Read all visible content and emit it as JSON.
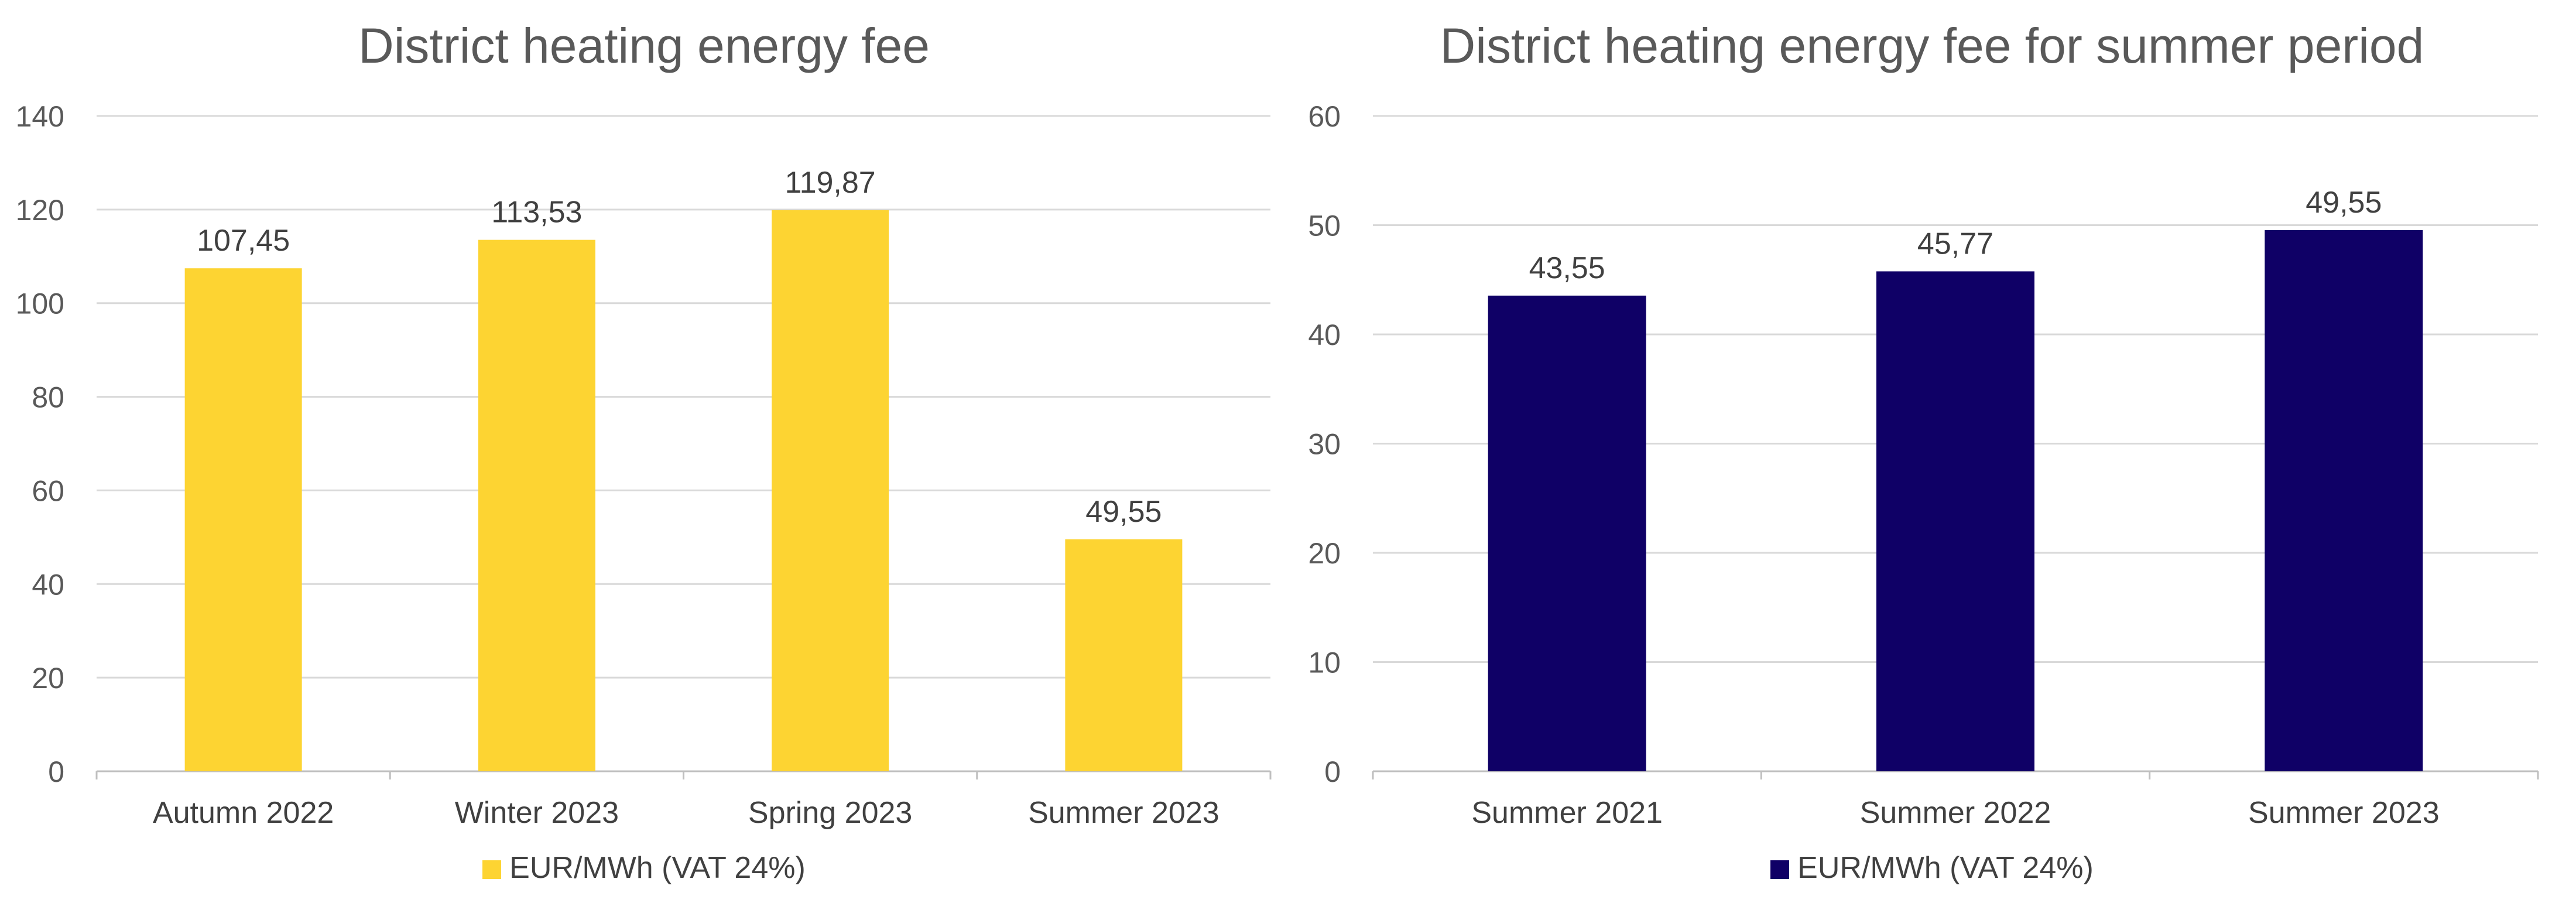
{
  "chart_data": [
    {
      "type": "bar",
      "title": "District heating energy fee",
      "categories": [
        "Autumn 2022",
        "Winter 2023",
        "Spring 2023",
        "Summer 2023"
      ],
      "series": [
        {
          "name": "EUR/MWh (VAT 24%)",
          "values": [
            107.45,
            113.53,
            119.87,
            49.55
          ]
        }
      ],
      "data_labels": [
        "107,45",
        "113,53",
        "119,87",
        "49,55"
      ],
      "y_ticks": [
        0,
        20,
        40,
        60,
        80,
        100,
        120,
        140
      ],
      "ylim": [
        0,
        140
      ],
      "grid": true,
      "legend_position": "bottom",
      "color": "#FDD432"
    },
    {
      "type": "bar",
      "title": "District heating energy fee for summer period",
      "categories": [
        "Summer 2021",
        "Summer 2022",
        "Summer 2023"
      ],
      "series": [
        {
          "name": "EUR/MWh (VAT 24%)",
          "values": [
            43.55,
            45.77,
            49.55
          ]
        }
      ],
      "data_labels": [
        "43,55",
        "45,77",
        "49,55"
      ],
      "y_ticks": [
        0,
        10,
        20,
        30,
        40,
        50,
        60
      ],
      "ylim": [
        0,
        60
      ],
      "grid": true,
      "legend_position": "bottom",
      "color": "#0F0066"
    }
  ]
}
